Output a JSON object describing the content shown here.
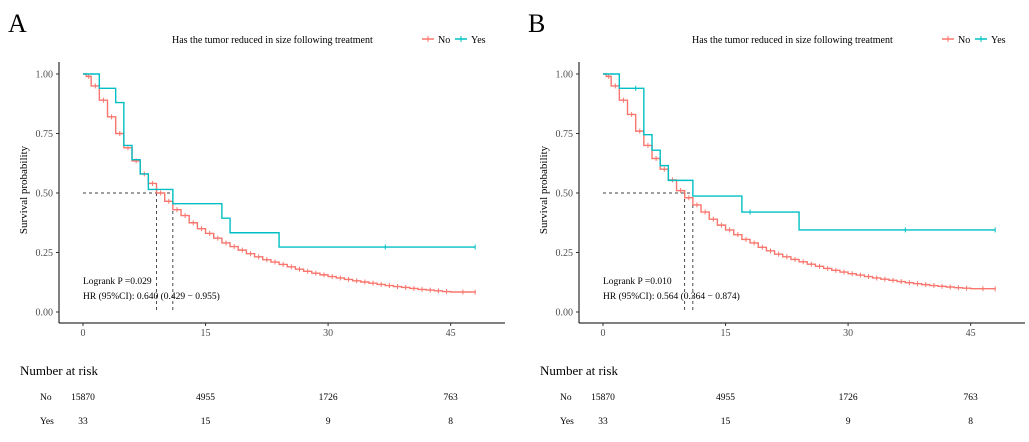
{
  "colors": {
    "No": "#F8766D",
    "Yes": "#00BFC4"
  },
  "chart_data": [
    {
      "type": "line",
      "subtype": "kaplan-meier step",
      "panel_label": "A",
      "legend_title": "Has the tumor reduced in size following treatment",
      "legend_position": "top",
      "ylabel": "Survival probability",
      "xlabel": "",
      "xlim": [
        0,
        48
      ],
      "ylim": [
        0,
        1
      ],
      "x_ticks": [
        "0",
        "15",
        "30",
        "45"
      ],
      "y_ticks": [
        "0.00",
        "0.25",
        "0.50",
        "0.75",
        "1.00"
      ],
      "grid": false,
      "median_lines": {
        "y": 0.5,
        "x": [
          9,
          11
        ]
      },
      "annotations": [
        "Logrank P =0.029",
        "HR (95%CI): 0.640 (0.429 − 0.955)"
      ],
      "series": [
        {
          "name": "No",
          "times": [
            0,
            0.4,
            1,
            2,
            3,
            4,
            5,
            6,
            7,
            8,
            9,
            10,
            11,
            12,
            13,
            14,
            15,
            16,
            17,
            18,
            19,
            20,
            21,
            22,
            23,
            24,
            25,
            26,
            27,
            28,
            29,
            30,
            31,
            32,
            33,
            34,
            35,
            36,
            37,
            38,
            39,
            40,
            41,
            42,
            43,
            44,
            45,
            48
          ],
          "surv": [
            1,
            0.99,
            0.95,
            0.89,
            0.82,
            0.75,
            0.69,
            0.635,
            0.58,
            0.54,
            0.5,
            0.465,
            0.43,
            0.405,
            0.375,
            0.35,
            0.33,
            0.31,
            0.29,
            0.275,
            0.26,
            0.245,
            0.232,
            0.22,
            0.21,
            0.2,
            0.19,
            0.18,
            0.171,
            0.163,
            0.156,
            0.149,
            0.143,
            0.137,
            0.131,
            0.126,
            0.121,
            0.116,
            0.111,
            0.107,
            0.103,
            0.099,
            0.095,
            0.092,
            0.089,
            0.086,
            0.084,
            0.083
          ],
          "censored_times": []
        },
        {
          "name": "Yes",
          "times": [
            0,
            2,
            4,
            5,
            6,
            7,
            8,
            11,
            17,
            18,
            24,
            48
          ],
          "surv": [
            1,
            0.94,
            0.88,
            0.7,
            0.64,
            0.58,
            0.515,
            0.455,
            0.394,
            0.333,
            0.273,
            0.273
          ],
          "censored_times": [
            37,
            48
          ]
        }
      ],
      "risk_table": {
        "title": "Number at risk",
        "times": [
          0,
          15,
          30,
          45
        ],
        "rows": [
          {
            "name": "No",
            "values": [
              "15870",
              "4955",
              "1726",
              "763"
            ]
          },
          {
            "name": "Yes",
            "values": [
              "33",
              "15",
              "9",
              "8"
            ]
          }
        ]
      }
    },
    {
      "type": "line",
      "subtype": "kaplan-meier step",
      "panel_label": "B",
      "legend_title": "Has the tumor reduced in size following treatment",
      "legend_position": "top",
      "ylabel": "Survival probability",
      "xlabel": "",
      "xlim": [
        0,
        48
      ],
      "ylim": [
        0,
        1
      ],
      "x_ticks": [
        "0",
        "15",
        "30",
        "45"
      ],
      "y_ticks": [
        "0.00",
        "0.25",
        "0.50",
        "0.75",
        "1.00"
      ],
      "grid": false,
      "median_lines": {
        "y": 0.5,
        "x": [
          10,
          11
        ]
      },
      "annotations": [
        "Logrank P =0.010",
        "HR (95%CI): 0.564 (0.364 − 0.874)"
      ],
      "series": [
        {
          "name": "No",
          "times": [
            0,
            0.4,
            1,
            2,
            3,
            4,
            5,
            6,
            7,
            8,
            9,
            10,
            11,
            12,
            13,
            14,
            15,
            16,
            17,
            18,
            19,
            20,
            21,
            22,
            23,
            24,
            25,
            26,
            27,
            28,
            29,
            30,
            31,
            32,
            33,
            34,
            35,
            36,
            37,
            38,
            39,
            40,
            41,
            42,
            43,
            44,
            45,
            48
          ],
          "surv": [
            1,
            0.99,
            0.95,
            0.89,
            0.83,
            0.76,
            0.7,
            0.645,
            0.6,
            0.555,
            0.51,
            0.48,
            0.45,
            0.42,
            0.39,
            0.365,
            0.345,
            0.325,
            0.305,
            0.29,
            0.272,
            0.257,
            0.243,
            0.232,
            0.221,
            0.211,
            0.201,
            0.192,
            0.183,
            0.175,
            0.168,
            0.161,
            0.155,
            0.149,
            0.143,
            0.138,
            0.133,
            0.128,
            0.123,
            0.119,
            0.115,
            0.111,
            0.108,
            0.105,
            0.102,
            0.1,
            0.098,
            0.097
          ],
          "censored_times": []
        },
        {
          "name": "Yes",
          "times": [
            0,
            2,
            5,
            6,
            7,
            8,
            11,
            17,
            24,
            48
          ],
          "surv": [
            1,
            0.94,
            0.745,
            0.68,
            0.615,
            0.553,
            0.487,
            0.42,
            0.345,
            0.345
          ],
          "censored_times": [
            4,
            18,
            37,
            48
          ]
        }
      ],
      "risk_table": {
        "title": "Number at risk",
        "times": [
          0,
          15,
          30,
          45
        ],
        "rows": [
          {
            "name": "No",
            "values": [
              "15870",
              "4955",
              "1726",
              "763"
            ]
          },
          {
            "name": "Yes",
            "values": [
              "33",
              "15",
              "9",
              "8"
            ]
          }
        ]
      }
    }
  ]
}
